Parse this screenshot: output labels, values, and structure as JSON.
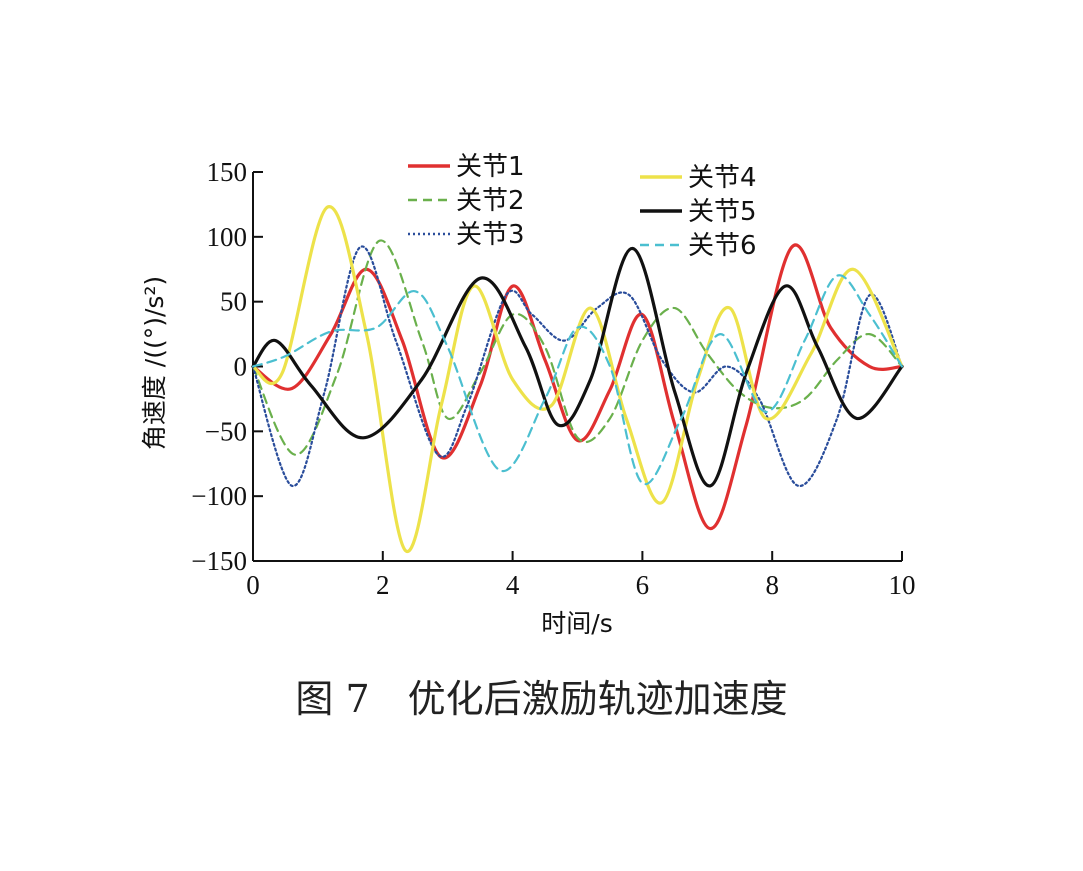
{
  "caption": "图 7　优化后激励轨迹加速度",
  "chart_data": {
    "type": "line",
    "xlabel": "时间/s",
    "ylabel": "角速度 /((°)/s²)",
    "xlim": [
      0,
      10
    ],
    "ylim": [
      -150,
      150
    ],
    "xticks": [
      0,
      2,
      4,
      6,
      8,
      10
    ],
    "yticks": [
      150,
      100,
      50,
      0,
      -50,
      -100,
      -150
    ],
    "legend_placement": "top",
    "grid": false,
    "series": [
      {
        "name": "关节1",
        "color": "#e03030",
        "dash": "solid",
        "x": [
          0,
          0.6,
          1.2,
          1.75,
          2.3,
          2.9,
          3.5,
          4.0,
          4.5,
          5.0,
          5.5,
          6.0,
          6.5,
          7.05,
          7.6,
          8.3,
          8.9,
          9.5,
          10
        ],
        "y": [
          0,
          -17,
          25,
          75,
          20,
          -70,
          -15,
          62,
          5,
          -57,
          -18,
          40,
          -45,
          -125,
          -45,
          92,
          30,
          0,
          0
        ]
      },
      {
        "name": "关节2",
        "color": "#6ab04c",
        "dash": "dashed",
        "x": [
          0,
          0.65,
          1.3,
          1.95,
          2.6,
          3.0,
          3.5,
          4.0,
          4.5,
          5.0,
          5.5,
          6.0,
          6.5,
          7.0,
          7.5,
          8.0,
          8.5,
          9.0,
          9.5,
          10
        ],
        "y": [
          0,
          -68,
          -5,
          97,
          20,
          -40,
          -5,
          40,
          15,
          -55,
          -40,
          20,
          45,
          10,
          -20,
          -32,
          -25,
          5,
          25,
          0
        ]
      },
      {
        "name": "关节3",
        "color": "#2a4d9b",
        "dash": "dotted",
        "x": [
          0,
          0.6,
          1.1,
          1.65,
          2.2,
          2.85,
          3.3,
          3.9,
          4.3,
          4.8,
          5.3,
          5.8,
          6.3,
          6.8,
          7.3,
          7.8,
          8.4,
          9.0,
          9.5,
          10
        ],
        "y": [
          0,
          -92,
          -20,
          92,
          20,
          -68,
          -30,
          55,
          40,
          20,
          45,
          55,
          5,
          -20,
          0,
          -25,
          -92,
          -40,
          55,
          0
        ]
      },
      {
        "name": "关节4",
        "color": "#ede24a",
        "dash": "solid",
        "x": [
          0,
          0.45,
          1.15,
          1.75,
          2.35,
          2.9,
          3.4,
          4.0,
          4.6,
          5.2,
          5.75,
          6.3,
          6.85,
          7.35,
          7.9,
          8.6,
          9.25,
          10
        ],
        "y": [
          0,
          -5,
          123,
          25,
          -142,
          -30,
          62,
          -10,
          -30,
          45,
          -40,
          -105,
          -10,
          45,
          -40,
          10,
          75,
          0
        ]
      },
      {
        "name": "关节5",
        "color": "#111111",
        "dash": "solid",
        "x": [
          0,
          0.35,
          0.9,
          1.7,
          2.6,
          3.5,
          4.2,
          4.7,
          5.2,
          5.85,
          6.5,
          7.05,
          7.6,
          8.2,
          8.7,
          9.3,
          10
        ],
        "y": [
          0,
          20,
          -15,
          -55,
          -10,
          68,
          15,
          -45,
          -10,
          91,
          -20,
          -92,
          -5,
          62,
          15,
          -40,
          0
        ]
      },
      {
        "name": "关节6",
        "color": "#4bbfd0",
        "dash": "dashed",
        "x": [
          0,
          0.5,
          1.2,
          1.9,
          2.5,
          3.0,
          3.8,
          4.5,
          5.0,
          5.5,
          6.0,
          6.6,
          7.2,
          7.9,
          8.5,
          9.0,
          9.5,
          10
        ],
        "y": [
          0,
          8,
          27,
          30,
          58,
          15,
          -80,
          -25,
          30,
          0,
          -90,
          -40,
          25,
          -35,
          20,
          70,
          40,
          0
        ]
      }
    ]
  }
}
